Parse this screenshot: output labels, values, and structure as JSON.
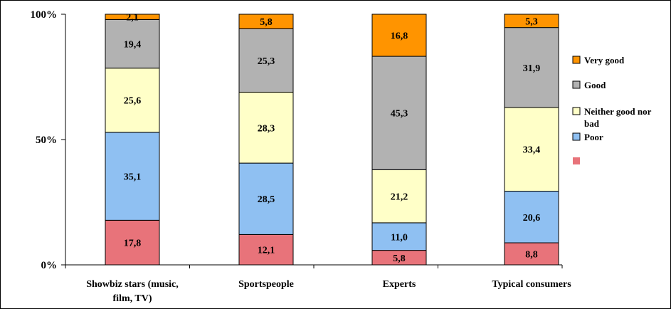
{
  "chart_data": {
    "type": "bar",
    "stacked": true,
    "percent": true,
    "categories": [
      "Showbiz stars (music, film, TV)",
      "Sportspeople",
      "Experts",
      "Typical consumers"
    ],
    "category_lines": [
      [
        "Showbiz stars (music,",
        "film, TV)"
      ],
      [
        "Sportspeople"
      ],
      [
        "Experts"
      ],
      [
        "Typical consumers"
      ]
    ],
    "series": [
      {
        "key": "s1",
        "name": "",
        "color": "#e8737a",
        "values": [
          "17,8",
          "12,1",
          "5,8",
          "8,8"
        ]
      },
      {
        "key": "s2",
        "name": "Poor",
        "color": "#8fc0f2",
        "values": [
          "35,1",
          "28,5",
          "11,0",
          "20,6"
        ]
      },
      {
        "key": "s3",
        "name": "Neither good nor bad",
        "name_lines": [
          "Neither good nor",
          "bad"
        ],
        "color": "#ffffc8",
        "values": [
          "25,6",
          "28,3",
          "21,2",
          "33,4"
        ]
      },
      {
        "key": "s4",
        "name": "Good",
        "color": "#b2b2b2",
        "values": [
          "19,4",
          "25,3",
          "45,3",
          "31,9"
        ]
      },
      {
        "key": "s5",
        "name": "Very good",
        "color": "#ff9400",
        "values": [
          "2,1",
          "5,8",
          "16,8",
          "5,3"
        ]
      }
    ],
    "ylim": [
      0,
      100
    ],
    "y_ticks": [
      "0%",
      "50%",
      "100%"
    ],
    "legend": {
      "placement": "right",
      "order": [
        "s5",
        "s4",
        "s3",
        "s2",
        "s1"
      ]
    },
    "grid": false
  }
}
